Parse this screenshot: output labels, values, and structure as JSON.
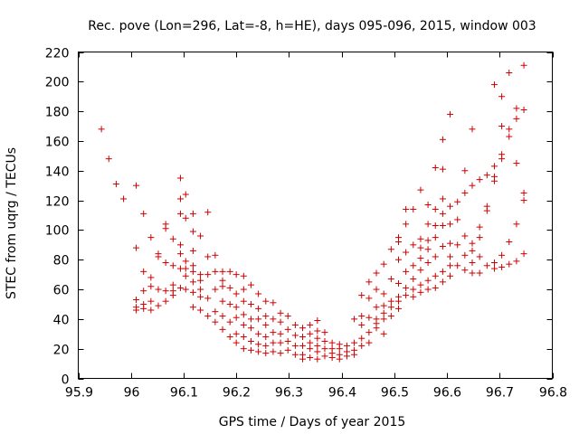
{
  "chart_data": {
    "type": "scatter",
    "title": "Rec. pove (Lon=296, Lat=-8, h=HE), days 095-096, 2015, window 003",
    "xlabel": "GPS time / Days of year 2015",
    "ylabel": "STEC from uqrg / TECUs",
    "xlim": [
      95.9,
      96.8
    ],
    "ylim": [
      0,
      220
    ],
    "xticks": [
      95.9,
      96,
      96.1,
      96.2,
      96.3,
      96.4,
      96.5,
      96.6,
      96.7,
      96.8
    ],
    "xtick_labels": [
      "95.9",
      "96",
      "96.1",
      "96.2",
      "96.3",
      "96.4",
      "96.5",
      "96.6",
      "96.7",
      "96.8"
    ],
    "yticks": [
      0,
      20,
      40,
      60,
      80,
      100,
      120,
      140,
      160,
      180,
      200,
      220
    ],
    "ytick_labels": [
      "0",
      "20",
      "40",
      "60",
      "80",
      "100",
      "120",
      "140",
      "160",
      "180",
      "200",
      "220"
    ],
    "marker": "+",
    "color": "#cc0000",
    "series": [
      {
        "name": "STEC",
        "points": [
          [
            95.944,
            168
          ],
          [
            95.958,
            148
          ],
          [
            95.972,
            131
          ],
          [
            95.986,
            121
          ],
          [
            96.01,
            130
          ],
          [
            96.01,
            88
          ],
          [
            96.01,
            53
          ],
          [
            96.01,
            48
          ],
          [
            96.01,
            46
          ],
          [
            96.024,
            111
          ],
          [
            96.024,
            72
          ],
          [
            96.024,
            59
          ],
          [
            96.024,
            50
          ],
          [
            96.024,
            47
          ],
          [
            96.038,
            95
          ],
          [
            96.038,
            68
          ],
          [
            96.038,
            62
          ],
          [
            96.038,
            52
          ],
          [
            96.038,
            46
          ],
          [
            96.052,
            84
          ],
          [
            96.052,
            82
          ],
          [
            96.052,
            60
          ],
          [
            96.052,
            49
          ],
          [
            96.066,
            104
          ],
          [
            96.066,
            101
          ],
          [
            96.066,
            78
          ],
          [
            96.066,
            59
          ],
          [
            96.066,
            52
          ],
          [
            96.08,
            94
          ],
          [
            96.08,
            76
          ],
          [
            96.08,
            63
          ],
          [
            96.08,
            59
          ],
          [
            96.08,
            56
          ],
          [
            96.094,
            135
          ],
          [
            96.094,
            121
          ],
          [
            96.094,
            111
          ],
          [
            96.094,
            90
          ],
          [
            96.094,
            84
          ],
          [
            96.094,
            74
          ],
          [
            96.094,
            61
          ],
          [
            96.104,
            124
          ],
          [
            96.104,
            108
          ],
          [
            96.104,
            79
          ],
          [
            96.104,
            74
          ],
          [
            96.104,
            69
          ],
          [
            96.104,
            60
          ],
          [
            96.118,
            111
          ],
          [
            96.118,
            99
          ],
          [
            96.118,
            86
          ],
          [
            96.118,
            76
          ],
          [
            96.118,
            72
          ],
          [
            96.118,
            65
          ],
          [
            96.118,
            58
          ],
          [
            96.118,
            48
          ],
          [
            96.132,
            96
          ],
          [
            96.132,
            70
          ],
          [
            96.132,
            66
          ],
          [
            96.132,
            60
          ],
          [
            96.132,
            55
          ],
          [
            96.132,
            46
          ],
          [
            96.146,
            112
          ],
          [
            96.146,
            82
          ],
          [
            96.146,
            70
          ],
          [
            96.146,
            54
          ],
          [
            96.146,
            42
          ],
          [
            96.16,
            83
          ],
          [
            96.16,
            72
          ],
          [
            96.16,
            60
          ],
          [
            96.16,
            45
          ],
          [
            96.16,
            38
          ],
          [
            96.174,
            72
          ],
          [
            96.174,
            66
          ],
          [
            96.174,
            62
          ],
          [
            96.174,
            52
          ],
          [
            96.174,
            42
          ],
          [
            96.174,
            33
          ],
          [
            96.188,
            72
          ],
          [
            96.188,
            61
          ],
          [
            96.188,
            50
          ],
          [
            96.188,
            38
          ],
          [
            96.188,
            28
          ],
          [
            96.2,
            70
          ],
          [
            96.2,
            57
          ],
          [
            96.2,
            48
          ],
          [
            96.2,
            41
          ],
          [
            96.2,
            30
          ],
          [
            96.2,
            24
          ],
          [
            96.214,
            69
          ],
          [
            96.214,
            60
          ],
          [
            96.214,
            52
          ],
          [
            96.214,
            43
          ],
          [
            96.214,
            36
          ],
          [
            96.214,
            28
          ],
          [
            96.214,
            20
          ],
          [
            96.228,
            63
          ],
          [
            96.228,
            50
          ],
          [
            96.228,
            40
          ],
          [
            96.228,
            34
          ],
          [
            96.228,
            25
          ],
          [
            96.228,
            19
          ],
          [
            96.242,
            57
          ],
          [
            96.242,
            47
          ],
          [
            96.242,
            40
          ],
          [
            96.242,
            30
          ],
          [
            96.242,
            23
          ],
          [
            96.242,
            18
          ],
          [
            96.256,
            52
          ],
          [
            96.256,
            42
          ],
          [
            96.256,
            36
          ],
          [
            96.256,
            28
          ],
          [
            96.256,
            22
          ],
          [
            96.256,
            17
          ],
          [
            96.27,
            51
          ],
          [
            96.27,
            40
          ],
          [
            96.27,
            31
          ],
          [
            96.27,
            24
          ],
          [
            96.27,
            18
          ],
          [
            96.284,
            44
          ],
          [
            96.284,
            38
          ],
          [
            96.284,
            30
          ],
          [
            96.284,
            24
          ],
          [
            96.284,
            17
          ],
          [
            96.298,
            42
          ],
          [
            96.298,
            33
          ],
          [
            96.298,
            25
          ],
          [
            96.298,
            19
          ],
          [
            96.312,
            36
          ],
          [
            96.312,
            29
          ],
          [
            96.312,
            22
          ],
          [
            96.312,
            16
          ],
          [
            96.326,
            34
          ],
          [
            96.326,
            28
          ],
          [
            96.326,
            22
          ],
          [
            96.326,
            16
          ],
          [
            96.326,
            13
          ],
          [
            96.34,
            36
          ],
          [
            96.34,
            30
          ],
          [
            96.34,
            24
          ],
          [
            96.34,
            20
          ],
          [
            96.34,
            14
          ],
          [
            96.354,
            39
          ],
          [
            96.354,
            32
          ],
          [
            96.354,
            27
          ],
          [
            96.354,
            22
          ],
          [
            96.354,
            18
          ],
          [
            96.354,
            13
          ],
          [
            96.368,
            31
          ],
          [
            96.368,
            25
          ],
          [
            96.368,
            20
          ],
          [
            96.368,
            15
          ],
          [
            96.382,
            24
          ],
          [
            96.382,
            20
          ],
          [
            96.382,
            17
          ],
          [
            96.382,
            14
          ],
          [
            96.396,
            23
          ],
          [
            96.396,
            20
          ],
          [
            96.396,
            16
          ],
          [
            96.396,
            13
          ],
          [
            96.41,
            22
          ],
          [
            96.41,
            18
          ],
          [
            96.41,
            15
          ],
          [
            96.424,
            40
          ],
          [
            96.424,
            24
          ],
          [
            96.424,
            19
          ],
          [
            96.424,
            16
          ],
          [
            96.438,
            56
          ],
          [
            96.438,
            42
          ],
          [
            96.438,
            36
          ],
          [
            96.438,
            27
          ],
          [
            96.438,
            22
          ],
          [
            96.452,
            65
          ],
          [
            96.452,
            54
          ],
          [
            96.452,
            41
          ],
          [
            96.452,
            31
          ],
          [
            96.452,
            24
          ],
          [
            96.466,
            71
          ],
          [
            96.466,
            60
          ],
          [
            96.466,
            48
          ],
          [
            96.466,
            40
          ],
          [
            96.466,
            37
          ],
          [
            96.466,
            34
          ],
          [
            96.48,
            77
          ],
          [
            96.48,
            57
          ],
          [
            96.48,
            49
          ],
          [
            96.48,
            44
          ],
          [
            96.48,
            40
          ],
          [
            96.48,
            30
          ],
          [
            96.494,
            87
          ],
          [
            96.494,
            67
          ],
          [
            96.494,
            52
          ],
          [
            96.494,
            48
          ],
          [
            96.494,
            42
          ],
          [
            96.508,
            95
          ],
          [
            96.508,
            92
          ],
          [
            96.508,
            80
          ],
          [
            96.508,
            64
          ],
          [
            96.508,
            55
          ],
          [
            96.508,
            52
          ],
          [
            96.508,
            47
          ],
          [
            96.522,
            114
          ],
          [
            96.522,
            104
          ],
          [
            96.522,
            85
          ],
          [
            96.522,
            72
          ],
          [
            96.522,
            61
          ],
          [
            96.522,
            56
          ],
          [
            96.536,
            114
          ],
          [
            96.536,
            90
          ],
          [
            96.536,
            76
          ],
          [
            96.536,
            67
          ],
          [
            96.536,
            60
          ],
          [
            96.536,
            55
          ],
          [
            96.55,
            127
          ],
          [
            96.55,
            94
          ],
          [
            96.55,
            88
          ],
          [
            96.55,
            81
          ],
          [
            96.55,
            73
          ],
          [
            96.55,
            63
          ],
          [
            96.55,
            58
          ],
          [
            96.564,
            117
          ],
          [
            96.564,
            104
          ],
          [
            96.564,
            93
          ],
          [
            96.564,
            87
          ],
          [
            96.564,
            78
          ],
          [
            96.564,
            66
          ],
          [
            96.564,
            60
          ],
          [
            96.578,
            142
          ],
          [
            96.578,
            114
          ],
          [
            96.578,
            103
          ],
          [
            96.578,
            95
          ],
          [
            96.578,
            82
          ],
          [
            96.578,
            69
          ],
          [
            96.578,
            61
          ],
          [
            96.592,
            161
          ],
          [
            96.592,
            141
          ],
          [
            96.592,
            121
          ],
          [
            96.592,
            111
          ],
          [
            96.592,
            103
          ],
          [
            96.592,
            89
          ],
          [
            96.592,
            72
          ],
          [
            96.592,
            65
          ],
          [
            96.606,
            178
          ],
          [
            96.606,
            116
          ],
          [
            96.606,
            104
          ],
          [
            96.606,
            91
          ],
          [
            96.606,
            82
          ],
          [
            96.606,
            76
          ],
          [
            96.606,
            69
          ],
          [
            96.62,
            119
          ],
          [
            96.62,
            107
          ],
          [
            96.62,
            90
          ],
          [
            96.62,
            76
          ],
          [
            96.634,
            140
          ],
          [
            96.634,
            125
          ],
          [
            96.634,
            96
          ],
          [
            96.634,
            83
          ],
          [
            96.634,
            73
          ],
          [
            96.648,
            168
          ],
          [
            96.648,
            130
          ],
          [
            96.648,
            91
          ],
          [
            96.648,
            86
          ],
          [
            96.648,
            78
          ],
          [
            96.648,
            71
          ],
          [
            96.662,
            134
          ],
          [
            96.662,
            102
          ],
          [
            96.662,
            95
          ],
          [
            96.662,
            82
          ],
          [
            96.662,
            71
          ],
          [
            96.676,
            137
          ],
          [
            96.676,
            116
          ],
          [
            96.676,
            113
          ],
          [
            96.676,
            76
          ],
          [
            96.69,
            198
          ],
          [
            96.69,
            143
          ],
          [
            96.69,
            136
          ],
          [
            96.69,
            133
          ],
          [
            96.69,
            78
          ],
          [
            96.69,
            74
          ],
          [
            96.704,
            190
          ],
          [
            96.704,
            170
          ],
          [
            96.704,
            151
          ],
          [
            96.704,
            148
          ],
          [
            96.704,
            83
          ],
          [
            96.704,
            75
          ],
          [
            96.718,
            206
          ],
          [
            96.718,
            168
          ],
          [
            96.718,
            163
          ],
          [
            96.718,
            92
          ],
          [
            96.718,
            77
          ],
          [
            96.732,
            182
          ],
          [
            96.732,
            175
          ],
          [
            96.732,
            145
          ],
          [
            96.732,
            104
          ],
          [
            96.732,
            79
          ],
          [
            96.746,
            211
          ],
          [
            96.746,
            181
          ],
          [
            96.746,
            125
          ],
          [
            96.746,
            120
          ],
          [
            96.746,
            84
          ]
        ]
      }
    ]
  }
}
